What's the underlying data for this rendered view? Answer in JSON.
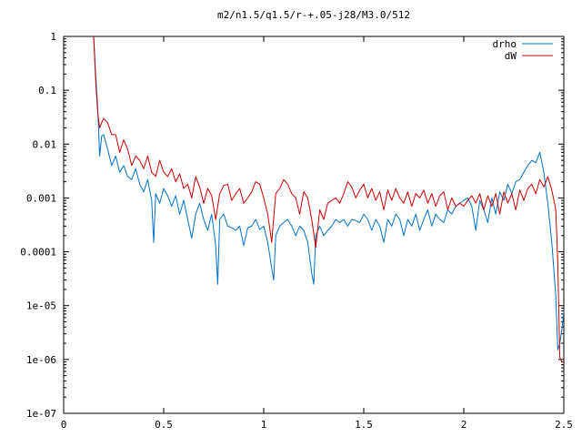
{
  "chart_data": {
    "type": "line",
    "title": "m2/n1.5/q1.5/r-+.05-j28/M3.0/512",
    "xlabel": "",
    "ylabel": "",
    "xlim": [
      0,
      2.5
    ],
    "ylim": [
      1e-07,
      1
    ],
    "yscale": "log",
    "grid": false,
    "legend_position": "top-right",
    "x_ticks": [
      {
        "value": 0,
        "label": "0"
      },
      {
        "value": 0.5,
        "label": "0.5"
      },
      {
        "value": 1,
        "label": "1"
      },
      {
        "value": 1.5,
        "label": "1.5"
      },
      {
        "value": 2,
        "label": "2"
      },
      {
        "value": 2.5,
        "label": "2.5"
      }
    ],
    "y_ticks": [
      {
        "value": 1,
        "label": "1"
      },
      {
        "value": 0.1,
        "label": "0.1"
      },
      {
        "value": 0.01,
        "label": "0.01"
      },
      {
        "value": 0.001,
        "label": "0.001"
      },
      {
        "value": 0.0001,
        "label": "0.0001"
      },
      {
        "value": 1e-05,
        "label": "1e-05"
      },
      {
        "value": 1e-06,
        "label": "1e-06"
      },
      {
        "value": 1e-07,
        "label": "1e-07"
      }
    ],
    "series": [
      {
        "name": "drho",
        "color": "#0072cc",
        "x": [
          0.15,
          0.16,
          0.17,
          0.18,
          0.19,
          0.2,
          0.22,
          0.24,
          0.26,
          0.28,
          0.3,
          0.32,
          0.34,
          0.36,
          0.38,
          0.4,
          0.42,
          0.44,
          0.45,
          0.46,
          0.48,
          0.5,
          0.52,
          0.54,
          0.56,
          0.58,
          0.6,
          0.62,
          0.64,
          0.66,
          0.68,
          0.7,
          0.72,
          0.74,
          0.76,
          0.77,
          0.78,
          0.8,
          0.82,
          0.84,
          0.86,
          0.88,
          0.9,
          0.92,
          0.94,
          0.96,
          0.98,
          1.0,
          1.02,
          1.04,
          1.05,
          1.06,
          1.08,
          1.1,
          1.12,
          1.14,
          1.16,
          1.18,
          1.2,
          1.22,
          1.24,
          1.25,
          1.26,
          1.28,
          1.3,
          1.32,
          1.34,
          1.36,
          1.38,
          1.4,
          1.42,
          1.44,
          1.46,
          1.48,
          1.5,
          1.52,
          1.54,
          1.56,
          1.58,
          1.6,
          1.62,
          1.64,
          1.66,
          1.68,
          1.7,
          1.72,
          1.74,
          1.76,
          1.78,
          1.8,
          1.82,
          1.84,
          1.86,
          1.88,
          1.9,
          1.92,
          1.94,
          1.96,
          1.98,
          2.0,
          2.02,
          2.04,
          2.06,
          2.08,
          2.1,
          2.12,
          2.14,
          2.16,
          2.18,
          2.2,
          2.22,
          2.24,
          2.26,
          2.28,
          2.3,
          2.32,
          2.34,
          2.36,
          2.38,
          2.4,
          2.42,
          2.44,
          2.46,
          2.47,
          2.48,
          2.49,
          2.5
        ],
        "y": [
          1,
          0.2,
          0.05,
          0.006,
          0.014,
          0.015,
          0.008,
          0.004,
          0.006,
          0.003,
          0.004,
          0.0025,
          0.0022,
          0.0035,
          0.0018,
          0.0013,
          0.0022,
          0.0009,
          0.00015,
          0.0012,
          0.0008,
          0.0015,
          0.0011,
          0.0007,
          0.0011,
          0.0005,
          0.0009,
          0.0004,
          0.00018,
          0.0005,
          0.0008,
          0.0004,
          0.00025,
          0.0005,
          0.00013,
          2.5e-05,
          0.0004,
          0.0005,
          0.0003,
          0.00028,
          0.00025,
          0.0003,
          0.00013,
          0.00028,
          0.0003,
          0.0004,
          0.00026,
          0.0003,
          0.00015,
          5e-05,
          3e-05,
          0.0002,
          0.0003,
          0.00035,
          0.0004,
          0.0003,
          0.0002,
          0.0003,
          0.00025,
          0.00015,
          4e-05,
          2.5e-05,
          0.0002,
          0.0003,
          0.0002,
          0.00025,
          0.0003,
          0.0004,
          0.00035,
          0.0004,
          0.0003,
          0.0004,
          0.00038,
          0.00035,
          0.0005,
          0.0004,
          0.00025,
          0.0004,
          0.0003,
          0.00015,
          0.0004,
          0.0003,
          0.0005,
          0.0004,
          0.0002,
          0.0004,
          0.0003,
          0.0005,
          0.00025,
          0.0004,
          0.0006,
          0.0003,
          0.0005,
          0.0004,
          0.00035,
          0.0006,
          0.0005,
          0.0007,
          0.0008,
          0.0009,
          0.001,
          0.0007,
          0.00025,
          0.0009,
          0.0006,
          0.00035,
          0.001,
          0.0005,
          0.0013,
          0.0009,
          0.0018,
          0.0012,
          0.002,
          0.0022,
          0.003,
          0.004,
          0.005,
          0.0045,
          0.007,
          0.003,
          0.0008,
          0.00015,
          1.5e-05,
          1.5e-06,
          2e-06,
          3.5e-06,
          8e-06
        ]
      },
      {
        "name": "dW",
        "color": "#cc0000",
        "x": [
          0.15,
          0.16,
          0.17,
          0.18,
          0.19,
          0.2,
          0.22,
          0.24,
          0.26,
          0.28,
          0.3,
          0.32,
          0.34,
          0.36,
          0.38,
          0.4,
          0.42,
          0.44,
          0.46,
          0.48,
          0.5,
          0.52,
          0.54,
          0.56,
          0.58,
          0.6,
          0.62,
          0.64,
          0.66,
          0.68,
          0.7,
          0.72,
          0.74,
          0.76,
          0.78,
          0.8,
          0.82,
          0.84,
          0.86,
          0.88,
          0.9,
          0.92,
          0.94,
          0.96,
          0.98,
          1.0,
          1.02,
          1.04,
          1.06,
          1.08,
          1.1,
          1.12,
          1.14,
          1.16,
          1.18,
          1.2,
          1.22,
          1.24,
          1.26,
          1.28,
          1.3,
          1.32,
          1.34,
          1.36,
          1.38,
          1.4,
          1.42,
          1.44,
          1.46,
          1.48,
          1.5,
          1.52,
          1.54,
          1.56,
          1.58,
          1.6,
          1.62,
          1.64,
          1.66,
          1.68,
          1.7,
          1.72,
          1.74,
          1.76,
          1.78,
          1.8,
          1.82,
          1.84,
          1.86,
          1.88,
          1.9,
          1.92,
          1.94,
          1.96,
          1.98,
          2.0,
          2.02,
          2.04,
          2.06,
          2.08,
          2.1,
          2.12,
          2.14,
          2.16,
          2.18,
          2.2,
          2.22,
          2.24,
          2.26,
          2.28,
          2.3,
          2.32,
          2.34,
          2.36,
          2.38,
          2.4,
          2.42,
          2.44,
          2.46,
          2.47,
          2.48,
          2.49,
          2.5
        ],
        "y": [
          1,
          0.15,
          0.04,
          0.02,
          0.025,
          0.03,
          0.025,
          0.015,
          0.015,
          0.007,
          0.012,
          0.008,
          0.004,
          0.006,
          0.005,
          0.0035,
          0.006,
          0.003,
          0.0025,
          0.005,
          0.003,
          0.0025,
          0.0035,
          0.002,
          0.0028,
          0.0015,
          0.0018,
          0.001,
          0.0025,
          0.0016,
          0.0008,
          0.0015,
          0.0011,
          0.0004,
          0.0012,
          0.0017,
          0.0018,
          0.0009,
          0.0012,
          0.0015,
          0.0008,
          0.001,
          0.0013,
          0.002,
          0.0018,
          0.001,
          0.0005,
          0.00015,
          0.0012,
          0.0015,
          0.0022,
          0.0018,
          0.0012,
          0.001,
          0.0005,
          0.0013,
          0.001,
          0.0004,
          0.00012,
          0.0006,
          0.0004,
          0.0008,
          0.0009,
          0.001,
          0.0008,
          0.0012,
          0.002,
          0.0016,
          0.001,
          0.0014,
          0.0018,
          0.001,
          0.0015,
          0.0009,
          0.0013,
          0.0006,
          0.0014,
          0.0009,
          0.0015,
          0.001,
          0.0008,
          0.0013,
          0.0007,
          0.0012,
          0.001,
          0.0014,
          0.0008,
          0.0012,
          0.0007,
          0.0011,
          0.0013,
          0.0006,
          0.001,
          0.0007,
          0.0008,
          0.0007,
          0.0009,
          0.0011,
          0.0008,
          0.0012,
          0.0006,
          0.0011,
          0.0007,
          0.0012,
          0.0005,
          0.0013,
          0.0008,
          0.0012,
          0.0006,
          0.0014,
          0.0009,
          0.0015,
          0.0018,
          0.0012,
          0.0022,
          0.0016,
          0.0025,
          0.0014,
          0.0006,
          6e-05,
          1.1e-06,
          9e-07,
          9e-07
        ]
      }
    ]
  }
}
